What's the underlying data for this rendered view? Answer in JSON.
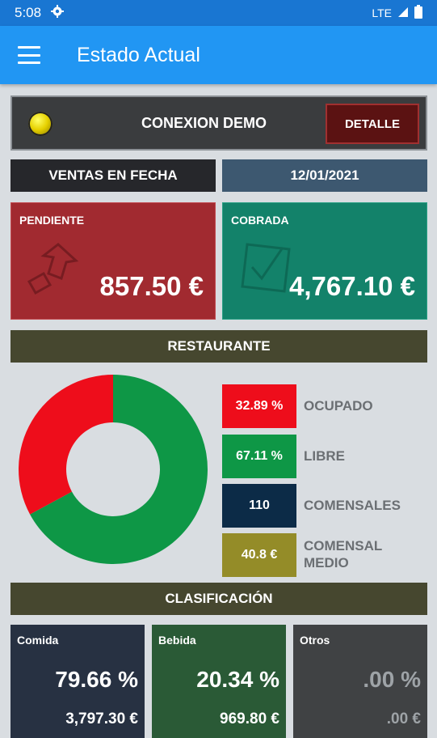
{
  "status_bar": {
    "time": "5:08",
    "network": "LTE"
  },
  "app_bar": {
    "title": "Estado Actual"
  },
  "connection": {
    "label": "CONEXION DEMO",
    "detail_button": "DETALLE"
  },
  "sales_date": {
    "label": "VENTAS EN FECHA",
    "date": "12/01/2021"
  },
  "cards": {
    "pending": {
      "title": "PENDIENTE",
      "value": "857.50 €"
    },
    "collected": {
      "title": "COBRADA",
      "value": "4,767.10 €"
    }
  },
  "restaurant": {
    "header": "RESTAURANTE",
    "stats": [
      {
        "value": "32.89 %",
        "label": "OCUPADO",
        "color": "#ee0d1b"
      },
      {
        "value": "67.11 %",
        "label": "LIBRE",
        "color": "#0e9746"
      },
      {
        "value": "110",
        "label": "COMENSALES",
        "color": "#0c2b47"
      },
      {
        "value": "40.8 €",
        "label": "COMENSAL MEDIO",
        "color": "#948c28"
      }
    ],
    "chart": {
      "occupied_pct": 32.89,
      "free_pct": 67.11
    }
  },
  "classification": {
    "header": "CLASIFICACIÓN",
    "items": [
      {
        "title": "Comida",
        "percent": "79.66 %",
        "amount": "3,797.30 €"
      },
      {
        "title": "Bebida",
        "percent": "20.34 %",
        "amount": "969.80 €"
      },
      {
        "title": "Otros",
        "percent": ".00 %",
        "amount": ".00 €"
      }
    ]
  },
  "colors": {
    "app_bar": "#2196f3",
    "pending": "#a12a30",
    "collected": "#13826a",
    "occupied": "#ee0d1b",
    "free": "#0e9746"
  }
}
